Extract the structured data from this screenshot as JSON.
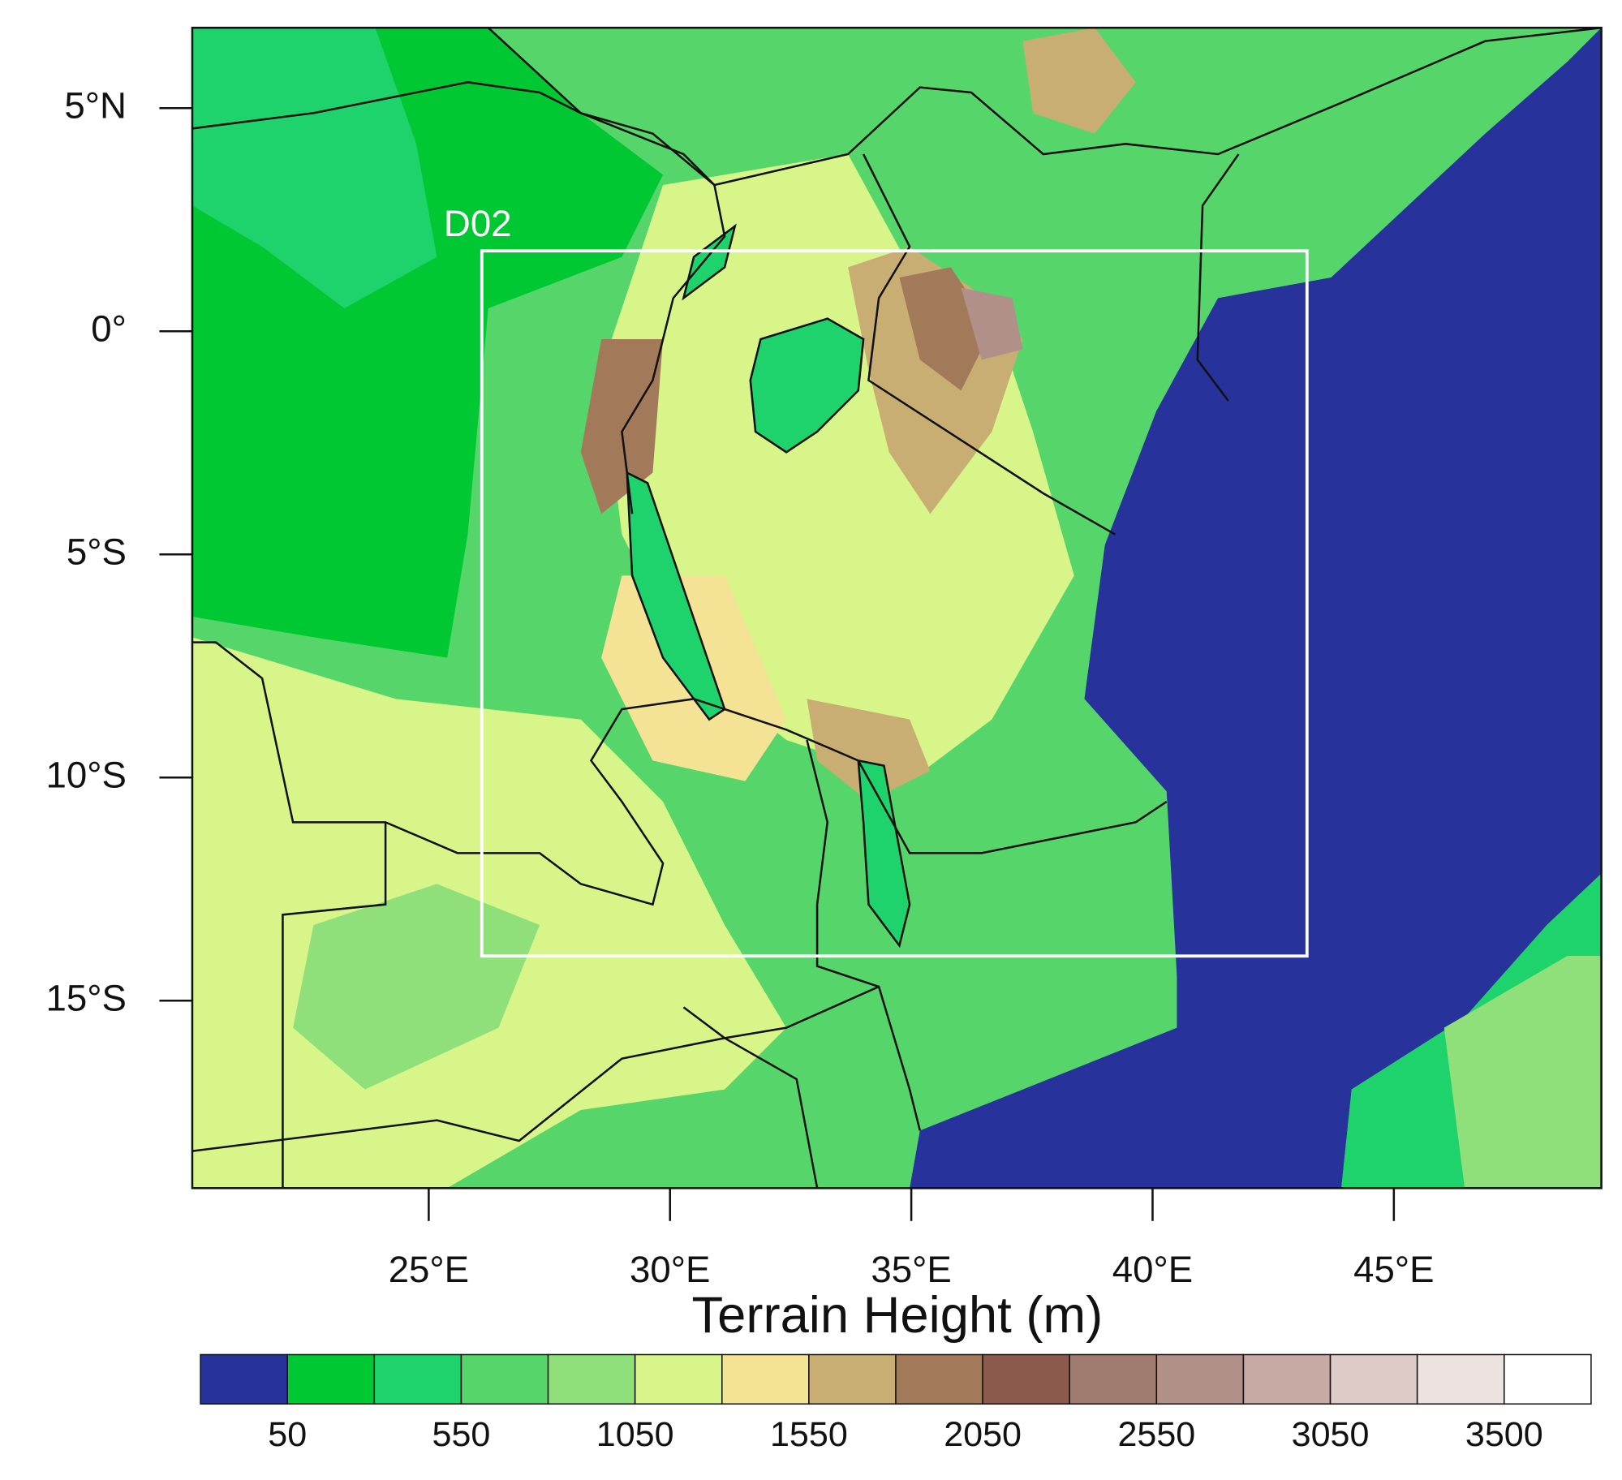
{
  "chart_data": {
    "type": "map",
    "title": "Terrain Height (m)",
    "xlim": [
      20.1,
      49.3
    ],
    "ylim": [
      -19.2,
      6.8
    ],
    "xticks": [
      {
        "value": 25,
        "label": "25°E"
      },
      {
        "value": 30,
        "label": "30°E"
      },
      {
        "value": 35,
        "label": "35°E"
      },
      {
        "value": 40,
        "label": "40°E"
      },
      {
        "value": 45,
        "label": "45°E"
      }
    ],
    "yticks": [
      {
        "value": 5,
        "label": "5°N"
      },
      {
        "value": 0,
        "label": "0°"
      },
      {
        "value": -5,
        "label": "5°S"
      },
      {
        "value": -10,
        "label": "10°S"
      },
      {
        "value": -15,
        "label": "15°S"
      }
    ],
    "domain_box": {
      "label": "D02",
      "lon": [
        26.1,
        43.2
      ],
      "lat": [
        -14.0,
        1.8
      ],
      "color": "#ffffff"
    },
    "colorbar": {
      "colors": [
        "#27339a",
        "#00c832",
        "#1ed36c",
        "#56d66a",
        "#8fe07a",
        "#d8f58a",
        "#f4e395",
        "#c8ae72",
        "#a27a5a",
        "#8b5a4c",
        "#a07b70",
        "#b09088",
        "#c8aaa4",
        "#dccbc6",
        "#ece3e0",
        "#ffffff"
      ],
      "levels": [
        50,
        300,
        550,
        800,
        1050,
        1300,
        1550,
        1800,
        2050,
        2300,
        2550,
        2800,
        3050,
        3300,
        3500
      ],
      "ticks": [
        50,
        550,
        1050,
        1550,
        2050,
        2550,
        3050,
        3500
      ]
    }
  }
}
